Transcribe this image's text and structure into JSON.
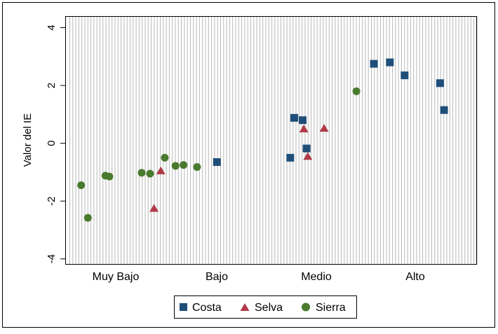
{
  "chart_data": {
    "type": "scatter",
    "ylabel": "Valor del IE",
    "xlabel": "",
    "ylim": [
      -4.2,
      4.4
    ],
    "yticks": [
      -4,
      -2,
      0,
      2,
      4
    ],
    "ytick_labels": [
      "-4",
      "-2",
      "0",
      "2",
      "4"
    ],
    "categories": [
      "Muy Bajo",
      "Bajo",
      "Medio",
      "Alto"
    ],
    "grid": "vertical lines",
    "legend": "bottom",
    "series": [
      {
        "name": "Costa",
        "marker": "square",
        "color": "#1f4e79",
        "points": [
          {
            "x": 0.365,
            "y": -0.65
          },
          {
            "x": 0.549,
            "y": -0.5
          },
          {
            "x": 0.559,
            "y": 0.88
          },
          {
            "x": 0.58,
            "y": 0.8
          },
          {
            "x": 0.59,
            "y": -0.18
          },
          {
            "x": 0.759,
            "y": 2.75
          },
          {
            "x": 0.799,
            "y": 2.8
          },
          {
            "x": 0.836,
            "y": 2.35
          },
          {
            "x": 0.925,
            "y": 2.08
          },
          {
            "x": 0.935,
            "y": 1.15
          }
        ]
      },
      {
        "name": "Selva",
        "marker": "triangle",
        "color": "#b03a48",
        "points": [
          {
            "x": 0.207,
            "y": -2.25
          },
          {
            "x": 0.224,
            "y": -0.95
          },
          {
            "x": 0.583,
            "y": 0.5
          },
          {
            "x": 0.593,
            "y": -0.45
          },
          {
            "x": 0.634,
            "y": 0.52
          }
        ]
      },
      {
        "name": "Sierra",
        "marker": "circle",
        "color": "#4a7a2e",
        "points": [
          {
            "x": 0.024,
            "y": -1.45
          },
          {
            "x": 0.041,
            "y": -2.58
          },
          {
            "x": 0.085,
            "y": -1.12
          },
          {
            "x": 0.095,
            "y": -1.15
          },
          {
            "x": 0.176,
            "y": -1.02
          },
          {
            "x": 0.197,
            "y": -1.05
          },
          {
            "x": 0.234,
            "y": -0.5
          },
          {
            "x": 0.261,
            "y": -0.78
          },
          {
            "x": 0.281,
            "y": -0.75
          },
          {
            "x": 0.315,
            "y": -0.82
          },
          {
            "x": 0.715,
            "y": 1.8
          }
        ]
      }
    ]
  }
}
